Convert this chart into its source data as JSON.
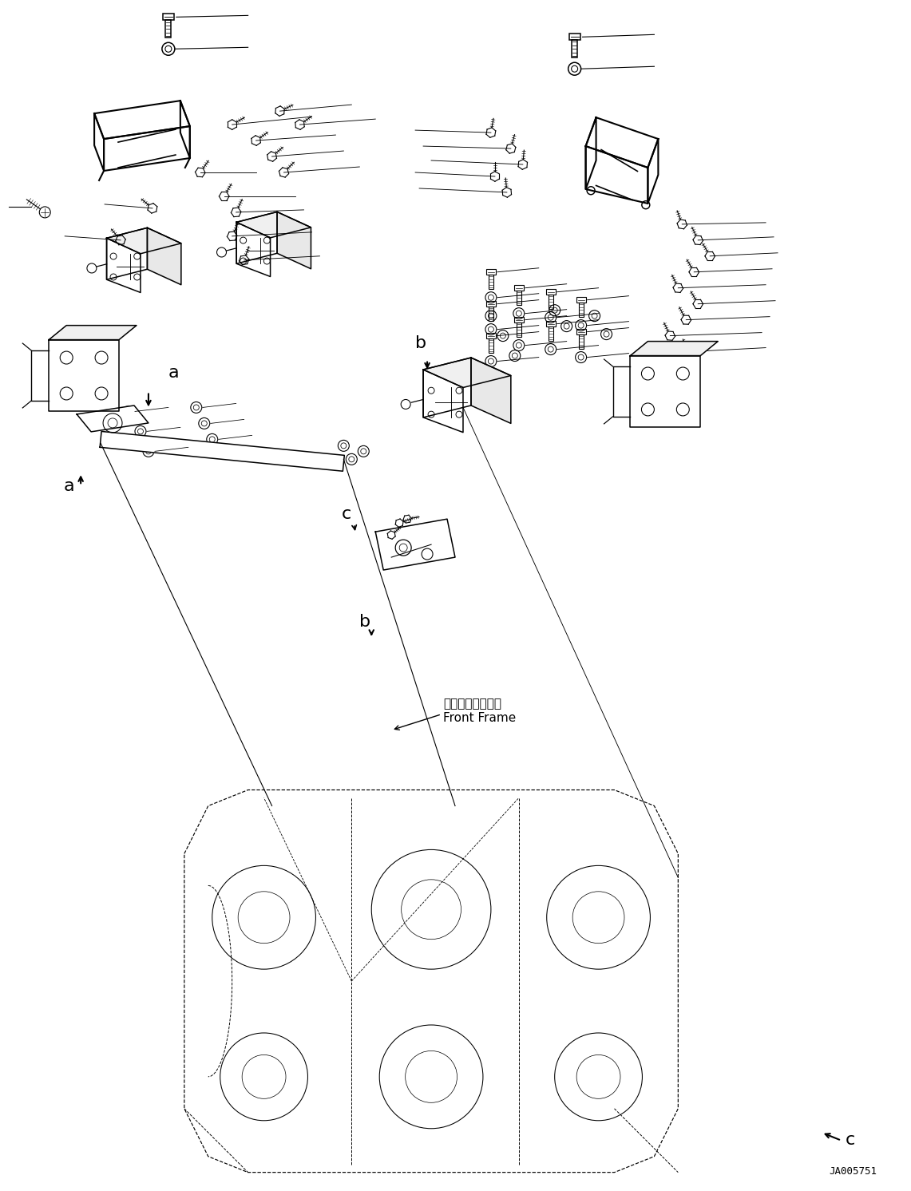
{
  "background_color": "#ffffff",
  "line_color": "#000000",
  "fig_width": 11.41,
  "fig_height": 14.92,
  "dpi": 100,
  "watermark": "JA005751",
  "label_a": "a",
  "label_b": "b",
  "label_c": "c",
  "front_frame_jp": "フロントフレーム",
  "front_frame_en": "Front Frame"
}
